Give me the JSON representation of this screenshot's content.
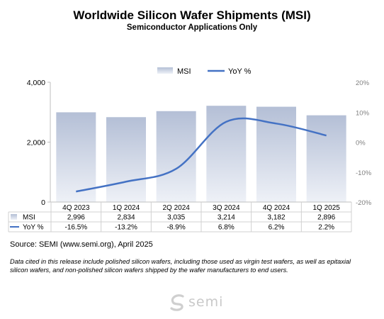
{
  "chart_data": {
    "type": "bar",
    "title": "Worldwide Silicon Wafer Shipments (MSI)",
    "subtitle": "Semiconductor Applications Only",
    "categories": [
      "4Q 2023",
      "1Q 2024",
      "2Q 2024",
      "3Q 2024",
      "4Q 2024",
      "1Q 2025"
    ],
    "series": [
      {
        "name": "MSI",
        "type": "bar",
        "axis": "left",
        "color": "#c5cde0",
        "values": [
          2996,
          2834,
          3035,
          3214,
          3182,
          2896
        ]
      },
      {
        "name": "YoY %",
        "type": "line",
        "axis": "right",
        "color": "#4472c4",
        "values": [
          -16.5,
          -13.2,
          -8.9,
          6.8,
          6.2,
          2.2
        ]
      }
    ],
    "y_left": {
      "range": [
        0,
        4000
      ],
      "ticks": [
        "0",
        "2,000",
        "4,000"
      ]
    },
    "y_right": {
      "range": [
        -20,
        20
      ],
      "ticks": [
        "-20%",
        "-10%",
        "0%",
        "10%",
        "20%"
      ]
    },
    "legend_position": "top-center",
    "table": {
      "rows": [
        {
          "label": "MSI",
          "cells": [
            "2,996",
            "2,834",
            "3,035",
            "3,214",
            "3,182",
            "2,896"
          ]
        },
        {
          "label": "YoY %",
          "cells": [
            "-16.5%",
            "-13.2%",
            "-8.9%",
            "6.8%",
            "6.2%",
            "2.2%"
          ]
        }
      ]
    }
  },
  "source": "Source: SEMI (www.semi.org), April 2025",
  "note": "Data cited in this release include polished silicon wafers, including those used as virgin test wafers, as well as epitaxial silicon wafers, and non-polished silicon wafers shipped by the wafer manufacturers to end users.",
  "brand": "semi"
}
